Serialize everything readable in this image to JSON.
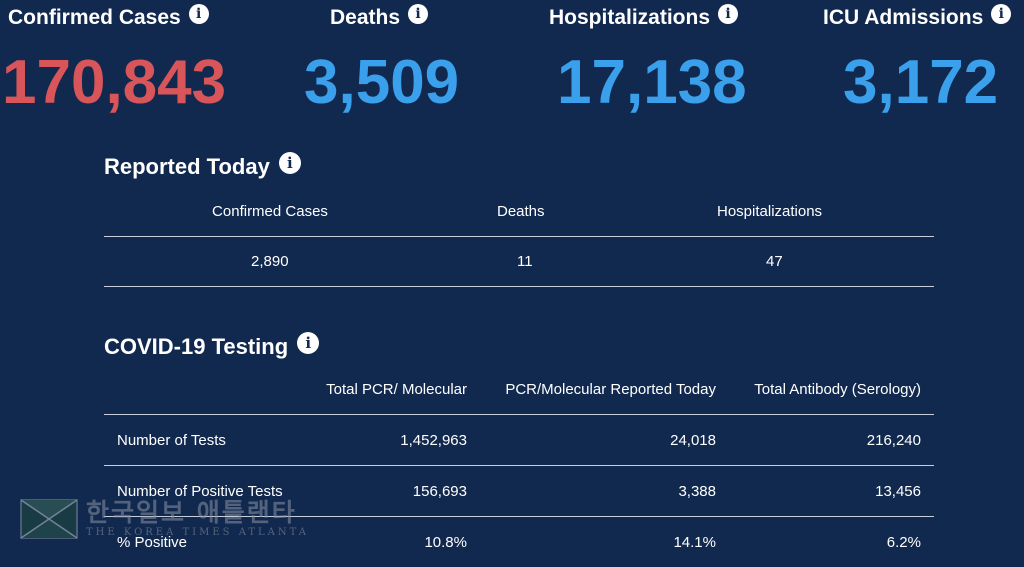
{
  "stats": {
    "confirmed": {
      "label": "Confirmed Cases",
      "value": "170,843",
      "color": "#d8555a"
    },
    "deaths": {
      "label": "Deaths",
      "value": "3,509",
      "color": "#3aa0ec"
    },
    "hospitalizations": {
      "label": "Hospitalizations",
      "value": "17,138",
      "color": "#3aa0ec"
    },
    "icu": {
      "label": "ICU Admissions",
      "value": "3,172",
      "color": "#3aa0ec"
    }
  },
  "reported_today": {
    "title": "Reported Today",
    "headers": [
      "Confirmed Cases",
      "Deaths",
      "Hospitalizations"
    ],
    "values": [
      "2,890",
      "11",
      "47"
    ]
  },
  "testing": {
    "title": "COVID-19 Testing",
    "headers": [
      "",
      "Total PCR/ Molecular",
      "PCR/Molecular Reported Today",
      "Total Antibody (Serology)"
    ],
    "rows": [
      {
        "label": "Number of Tests",
        "values": [
          "1,452,963",
          "24,018",
          "216,240"
        ]
      },
      {
        "label": "Number of Positive Tests",
        "values": [
          "156,693",
          "3,388",
          "13,456"
        ]
      },
      {
        "label": "% Positive",
        "values": [
          "10.8%",
          "14.1%",
          "6.2%"
        ]
      }
    ]
  },
  "icons": {
    "info": "info-icon"
  },
  "watermark": {
    "korean": "한국일보 애틀랜타",
    "english": "THE KOREA TIMES ATLANTA"
  }
}
